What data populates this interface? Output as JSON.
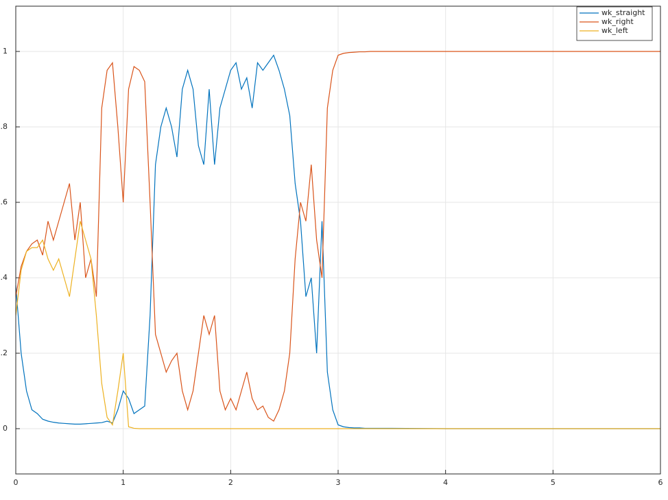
{
  "chart_data": {
    "type": "line",
    "x": [
      0,
      0.05,
      0.1,
      0.15,
      0.2,
      0.25,
      0.3,
      0.35,
      0.4,
      0.45,
      0.5,
      0.55,
      0.6,
      0.65,
      0.7,
      0.75,
      0.8,
      0.85,
      0.9,
      0.95,
      1,
      1.05,
      1.1,
      1.15,
      1.2,
      1.25,
      1.3,
      1.35,
      1.4,
      1.45,
      1.5,
      1.55,
      1.6,
      1.65,
      1.7,
      1.75,
      1.8,
      1.85,
      1.9,
      1.95,
      2,
      2.05,
      2.1,
      2.15,
      2.2,
      2.25,
      2.3,
      2.35,
      2.4,
      2.45,
      2.5,
      2.55,
      2.6,
      2.65,
      2.7,
      2.75,
      2.8,
      2.85,
      2.9,
      2.95,
      3,
      3.05,
      3.1,
      3.15,
      3.2,
      3.25,
      3.3,
      3.35,
      3.4,
      3.45,
      3.5,
      4,
      5,
      6
    ],
    "series": [
      {
        "name": "wk_straight",
        "color": "#0072bd",
        "values": [
          0.38,
          0.2,
          0.1,
          0.05,
          0.04,
          0.025,
          0.02,
          0.017,
          0.015,
          0.014,
          0.013,
          0.012,
          0.012,
          0.013,
          0.014,
          0.015,
          0.016,
          0.02,
          0.015,
          0.05,
          0.1,
          0.08,
          0.04,
          0.05,
          0.06,
          0.3,
          0.7,
          0.8,
          0.85,
          0.8,
          0.72,
          0.9,
          0.95,
          0.9,
          0.75,
          0.7,
          0.9,
          0.7,
          0.85,
          0.9,
          0.95,
          0.97,
          0.9,
          0.93,
          0.85,
          0.97,
          0.95,
          0.97,
          0.99,
          0.95,
          0.9,
          0.83,
          0.65,
          0.55,
          0.35,
          0.4,
          0.2,
          0.55,
          0.15,
          0.05,
          0.01,
          0.005,
          0.003,
          0.002,
          0.002,
          0.001,
          0.001,
          0.001,
          0.001,
          0.001,
          0.001,
          0,
          0,
          0
        ]
      },
      {
        "name": "wk_right",
        "color": "#d95319",
        "values": [
          0.35,
          0.43,
          0.47,
          0.49,
          0.5,
          0.46,
          0.55,
          0.5,
          0.55,
          0.6,
          0.65,
          0.5,
          0.6,
          0.4,
          0.45,
          0.35,
          0.85,
          0.95,
          0.97,
          0.8,
          0.6,
          0.9,
          0.96,
          0.95,
          0.92,
          0.6,
          0.25,
          0.2,
          0.15,
          0.18,
          0.2,
          0.1,
          0.05,
          0.1,
          0.2,
          0.3,
          0.25,
          0.3,
          0.1,
          0.05,
          0.08,
          0.05,
          0.1,
          0.15,
          0.08,
          0.05,
          0.06,
          0.03,
          0.02,
          0.05,
          0.1,
          0.2,
          0.45,
          0.6,
          0.55,
          0.7,
          0.5,
          0.4,
          0.85,
          0.95,
          0.99,
          0.995,
          0.997,
          0.998,
          0.999,
          0.999,
          1,
          1,
          1,
          1,
          1,
          1,
          1,
          1
        ]
      },
      {
        "name": "wk_left",
        "color": "#edb120",
        "values": [
          0.3,
          0.42,
          0.47,
          0.48,
          0.48,
          0.5,
          0.45,
          0.42,
          0.45,
          0.4,
          0.35,
          0.45,
          0.55,
          0.5,
          0.45,
          0.3,
          0.12,
          0.03,
          0.01,
          0.1,
          0.2,
          0.005,
          0.001,
          0,
          0,
          0,
          0,
          0,
          0,
          0,
          0,
          0,
          0,
          0,
          0,
          0,
          0,
          0,
          0,
          0,
          0,
          0,
          0,
          0,
          0,
          0,
          0,
          0,
          0,
          0,
          0,
          0,
          0,
          0,
          0,
          0,
          0,
          0,
          0,
          0,
          0,
          0,
          0,
          0,
          0,
          0,
          0,
          0,
          0,
          0,
          0,
          0,
          0,
          0
        ]
      }
    ],
    "xlim": [
      0,
      6
    ],
    "xticks": [
      0,
      1,
      2,
      3,
      4,
      5,
      6
    ],
    "ylim": [
      -0.12,
      1.12
    ],
    "yticks": [
      0,
      0.2,
      0.4,
      0.6,
      0.8,
      1
    ],
    "grid": true,
    "legend": "top-right"
  }
}
